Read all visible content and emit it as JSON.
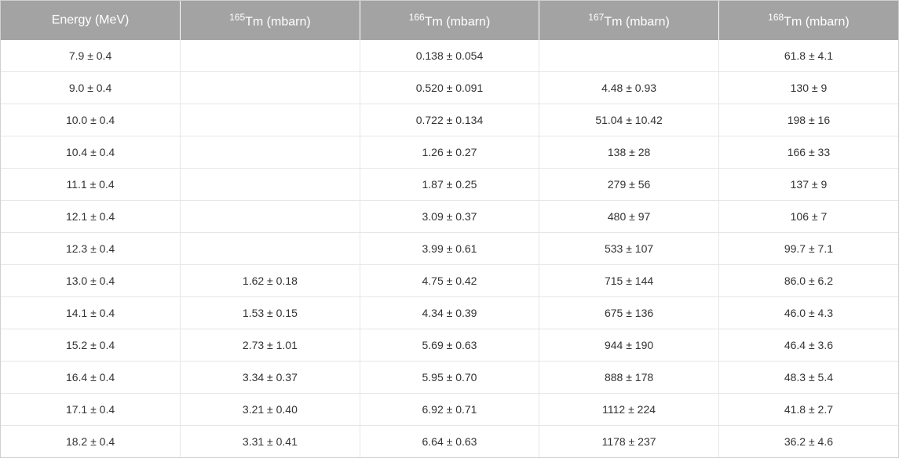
{
  "table": {
    "type": "table",
    "background_color": "#ffffff",
    "header_bg": "#a4a3a3",
    "header_fg": "#ffffff",
    "header_fontsize": 16,
    "body_fontsize": 14,
    "body_fg": "#333333",
    "border_color": "#e6e6e6",
    "outer_border_color": "#d0d0d0",
    "columns": [
      {
        "label": "Energy (MeV)",
        "sup": null,
        "width": "20%"
      },
      {
        "label": "Tm (mbarn)",
        "sup": "165",
        "width": "20%"
      },
      {
        "label": "Tm (mbarn)",
        "sup": "166",
        "width": "20%"
      },
      {
        "label": "Tm (mbarn)",
        "sup": "167",
        "width": "20%"
      },
      {
        "label": "Tm (mbarn)",
        "sup": "168",
        "width": "20%"
      }
    ],
    "rows": [
      [
        "7.9 ± 0.4",
        "",
        "0.138 ± 0.054",
        "",
        "61.8 ± 4.1"
      ],
      [
        "9.0 ± 0.4",
        "",
        "0.520 ± 0.091",
        "4.48 ± 0.93",
        "130 ± 9"
      ],
      [
        "10.0 ± 0.4",
        "",
        "0.722 ± 0.134",
        "51.04 ± 10.42",
        "198 ± 16"
      ],
      [
        "10.4 ± 0.4",
        "",
        "1.26 ± 0.27",
        "138 ± 28",
        "166 ± 33"
      ],
      [
        "11.1 ± 0.4",
        "",
        "1.87 ± 0.25",
        "279 ± 56",
        "137 ± 9"
      ],
      [
        "12.1 ± 0.4",
        "",
        "3.09 ± 0.37",
        "480 ± 97",
        "106 ± 7"
      ],
      [
        "12.3 ± 0.4",
        "",
        "3.99 ± 0.61",
        "533 ± 107",
        "99.7 ± 7.1"
      ],
      [
        "13.0 ± 0.4",
        "1.62 ± 0.18",
        "4.75 ± 0.42",
        "715 ± 144",
        "86.0 ± 6.2"
      ],
      [
        "14.1 ± 0.4",
        "1.53 ± 0.15",
        "4.34 ± 0.39",
        "675 ± 136",
        "46.0 ± 4.3"
      ],
      [
        "15.2 ± 0.4",
        "2.73 ± 1.01",
        "5.69 ± 0.63",
        "944 ± 190",
        "46.4 ± 3.6"
      ],
      [
        "16.4 ± 0.4",
        "3.34 ± 0.37",
        "5.95 ± 0.70",
        "888 ± 178",
        "48.3 ± 5.4"
      ],
      [
        "17.1 ± 0.4",
        "3.21 ± 0.40",
        "6.92 ± 0.71",
        "1112 ± 224",
        "41.8 ± 2.7"
      ],
      [
        "18.2 ± 0.4",
        "3.31 ± 0.41",
        "6.64 ± 0.63",
        "1178 ± 237",
        "36.2 ± 4.6"
      ]
    ]
  }
}
